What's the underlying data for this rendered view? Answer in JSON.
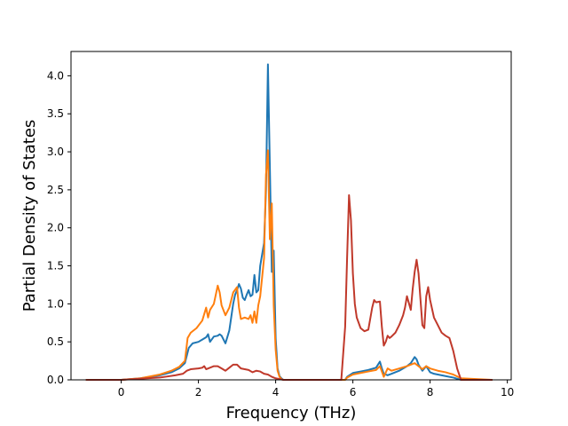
{
  "chart_data": {
    "type": "line",
    "title": "",
    "xlabel": "Frequency (THz)",
    "ylabel": "Partial Density of States",
    "xlim": [
      -1.3,
      10.1
    ],
    "ylim": [
      0,
      4.32
    ],
    "xticks": [
      0,
      2,
      4,
      6,
      8,
      10
    ],
    "xtick_labels": [
      "0",
      "2",
      "4",
      "6",
      "8",
      "10"
    ],
    "yticks": [
      0.0,
      0.5,
      1.0,
      1.5,
      2.0,
      2.5,
      3.0,
      3.5,
      4.0
    ],
    "ytick_labels": [
      "0.0",
      "0.5",
      "1.0",
      "1.5",
      "2.0",
      "2.5",
      "3.0",
      "3.5",
      "4.0"
    ],
    "grid": false,
    "legend": "none",
    "series": [
      {
        "color": "#1f77b4",
        "x": [
          -0.9,
          0.0,
          0.5,
          1.0,
          1.3,
          1.5,
          1.65,
          1.75,
          1.85,
          2.0,
          2.1,
          2.2,
          2.25,
          2.3,
          2.4,
          2.5,
          2.55,
          2.6,
          2.7,
          2.8,
          2.9,
          2.95,
          3.0,
          3.05,
          3.1,
          3.15,
          3.2,
          3.25,
          3.3,
          3.35,
          3.4,
          3.45,
          3.5,
          3.55,
          3.6,
          3.7,
          3.75,
          3.8,
          3.85,
          3.9,
          3.95,
          4.0,
          4.05,
          4.1,
          4.15,
          4.2,
          4.3,
          4.4,
          5.8,
          5.85,
          6.0,
          6.2,
          6.4,
          6.6,
          6.7,
          6.75,
          6.8,
          6.9,
          7.0,
          7.2,
          7.4,
          7.5,
          7.6,
          7.65,
          7.7,
          7.8,
          7.9,
          8.0,
          8.1,
          8.2,
          8.4,
          8.6,
          8.8,
          9.6
        ],
        "y": [
          0.0,
          0.0,
          0.02,
          0.06,
          0.1,
          0.15,
          0.22,
          0.42,
          0.48,
          0.5,
          0.53,
          0.56,
          0.6,
          0.5,
          0.57,
          0.58,
          0.6,
          0.58,
          0.48,
          0.65,
          1.0,
          1.12,
          1.18,
          1.26,
          1.2,
          1.08,
          1.05,
          1.12,
          1.18,
          1.1,
          1.12,
          1.38,
          1.15,
          1.18,
          1.5,
          1.8,
          2.5,
          4.15,
          2.8,
          1.42,
          1.7,
          0.55,
          0.15,
          0.05,
          0.02,
          0.0,
          0.0,
          0.0,
          0.0,
          0.04,
          0.09,
          0.11,
          0.13,
          0.16,
          0.24,
          0.15,
          0.08,
          0.06,
          0.08,
          0.12,
          0.18,
          0.22,
          0.3,
          0.27,
          0.2,
          0.12,
          0.18,
          0.1,
          0.08,
          0.07,
          0.05,
          0.03,
          0.0,
          0.0
        ]
      },
      {
        "color": "#ff7f0e",
        "x": [
          -0.9,
          0.0,
          0.5,
          1.0,
          1.3,
          1.5,
          1.65,
          1.72,
          1.8,
          1.95,
          2.1,
          2.2,
          2.25,
          2.3,
          2.4,
          2.45,
          2.5,
          2.55,
          2.6,
          2.7,
          2.8,
          2.9,
          3.0,
          3.05,
          3.1,
          3.2,
          3.3,
          3.35,
          3.4,
          3.45,
          3.5,
          3.55,
          3.6,
          3.7,
          3.75,
          3.8,
          3.85,
          3.9,
          3.95,
          4.0,
          4.05,
          4.1,
          4.15,
          4.2,
          4.3,
          4.4,
          5.8,
          5.85,
          6.0,
          6.2,
          6.4,
          6.6,
          6.7,
          6.8,
          6.9,
          7.0,
          7.2,
          7.4,
          7.6,
          7.7,
          7.8,
          7.9,
          8.0,
          8.2,
          8.4,
          8.6,
          8.8,
          9.6
        ],
        "y": [
          0.0,
          0.0,
          0.02,
          0.07,
          0.12,
          0.17,
          0.25,
          0.55,
          0.62,
          0.68,
          0.78,
          0.95,
          0.82,
          0.92,
          1.0,
          1.12,
          1.24,
          1.15,
          0.98,
          0.85,
          0.95,
          1.15,
          1.22,
          0.95,
          0.8,
          0.82,
          0.8,
          0.85,
          0.75,
          0.9,
          0.75,
          0.98,
          1.1,
          1.6,
          2.7,
          3.02,
          1.85,
          2.32,
          0.98,
          0.4,
          0.12,
          0.04,
          0.01,
          0.0,
          0.0,
          0.0,
          0.0,
          0.03,
          0.07,
          0.09,
          0.11,
          0.13,
          0.18,
          0.04,
          0.15,
          0.12,
          0.15,
          0.18,
          0.22,
          0.18,
          0.14,
          0.18,
          0.15,
          0.12,
          0.1,
          0.07,
          0.02,
          0.0
        ]
      },
      {
        "color": "#c0392b",
        "x": [
          -0.9,
          0.0,
          1.0,
          1.4,
          1.6,
          1.7,
          1.8,
          2.0,
          2.1,
          2.15,
          2.2,
          2.3,
          2.4,
          2.5,
          2.6,
          2.7,
          2.8,
          2.9,
          3.0,
          3.1,
          3.2,
          3.3,
          3.4,
          3.5,
          3.6,
          3.7,
          3.8,
          3.9,
          4.0,
          4.2,
          5.7,
          5.8,
          5.85,
          5.9,
          5.95,
          6.0,
          6.05,
          6.1,
          6.2,
          6.3,
          6.4,
          6.5,
          6.55,
          6.6,
          6.7,
          6.75,
          6.8,
          6.85,
          6.9,
          6.95,
          7.0,
          7.1,
          7.2,
          7.3,
          7.35,
          7.4,
          7.5,
          7.55,
          7.6,
          7.65,
          7.7,
          7.8,
          7.85,
          7.9,
          7.95,
          8.0,
          8.1,
          8.2,
          8.3,
          8.4,
          8.5,
          8.6,
          8.7,
          8.8,
          9.6
        ],
        "y": [
          0.0,
          0.0,
          0.03,
          0.06,
          0.08,
          0.12,
          0.14,
          0.15,
          0.16,
          0.18,
          0.14,
          0.16,
          0.18,
          0.18,
          0.15,
          0.12,
          0.16,
          0.2,
          0.2,
          0.15,
          0.14,
          0.13,
          0.1,
          0.12,
          0.11,
          0.08,
          0.07,
          0.04,
          0.02,
          0.0,
          0.0,
          0.7,
          1.6,
          2.43,
          2.1,
          1.4,
          1.0,
          0.82,
          0.68,
          0.64,
          0.66,
          0.95,
          1.05,
          1.02,
          1.03,
          0.7,
          0.45,
          0.5,
          0.58,
          0.55,
          0.57,
          0.62,
          0.72,
          0.85,
          0.95,
          1.1,
          0.92,
          1.2,
          1.42,
          1.58,
          1.4,
          0.72,
          0.68,
          1.1,
          1.22,
          1.05,
          0.82,
          0.72,
          0.62,
          0.58,
          0.55,
          0.38,
          0.15,
          0.0,
          0.0
        ]
      }
    ]
  }
}
